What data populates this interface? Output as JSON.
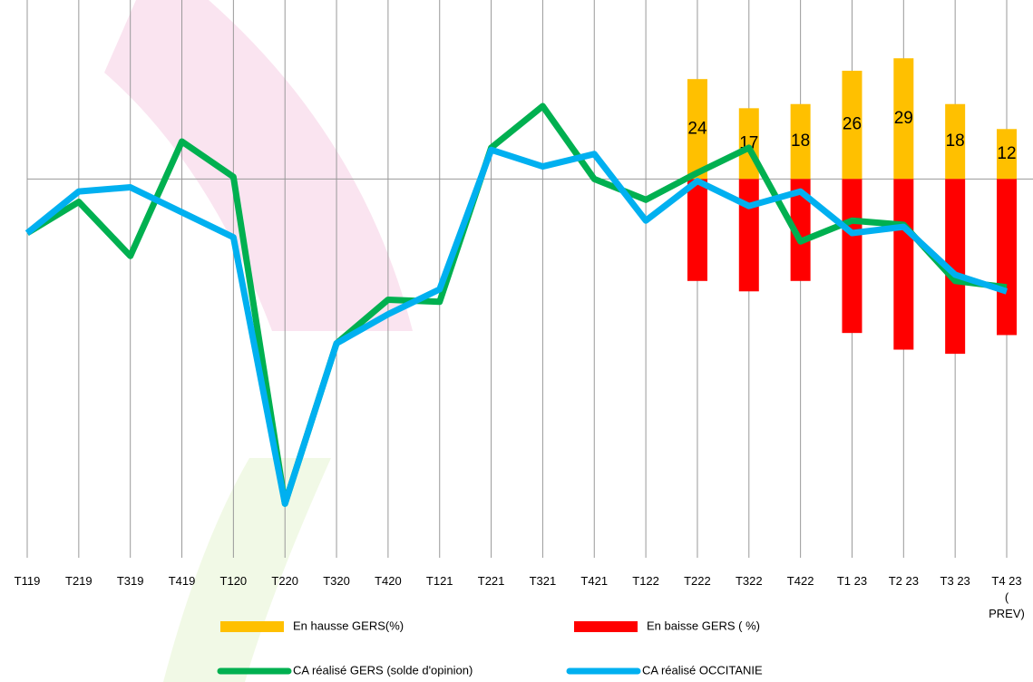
{
  "chart_data": {
    "type": "bar-line",
    "categories": [
      "T119",
      "T219",
      "T319",
      "T419",
      "T120",
      "T220",
      "T320",
      "T420",
      "T121",
      "T221",
      "T321",
      "T421",
      "T122",
      "T222",
      "T322",
      "T422",
      "T1 23",
      "T2 23",
      "T3 23",
      "T4 23 ( PREV)"
    ],
    "ylim": [
      -91,
      43
    ],
    "series": [
      {
        "name": "En hausse GERS(%)",
        "kind": "bar",
        "color": "#FFC000",
        "values": [
          null,
          null,
          null,
          null,
          null,
          null,
          null,
          null,
          null,
          null,
          null,
          null,
          null,
          24,
          17,
          18,
          26,
          29,
          18,
          12
        ]
      },
      {
        "name": "En baisse GERS ( %)",
        "kind": "bar",
        "color": "#FF0000",
        "values": [
          null,
          null,
          null,
          null,
          null,
          null,
          null,
          null,
          null,
          null,
          null,
          null,
          null,
          -24.5,
          -27,
          -24.5,
          -37,
          -41,
          -42,
          -37.5
        ]
      },
      {
        "name": "CA réalisé GERS (solde d'opinion)",
        "kind": "line",
        "color": "#00B050",
        "values": [
          -13,
          -5.5,
          -18.5,
          9,
          0.5,
          -78,
          -39.5,
          -29,
          -29.5,
          7.5,
          17.5,
          0,
          -5,
          1.5,
          7.5,
          -15,
          -10,
          -11,
          -24.5,
          -26
        ]
      },
      {
        "name": "CA réalisé OCCITANIE",
        "kind": "line",
        "color": "#00B0F0",
        "values": [
          -13,
          -3,
          -2,
          -8,
          -14,
          -78,
          -39.5,
          -32.5,
          -26.5,
          7,
          3,
          6,
          -10,
          -0.5,
          -6.5,
          -3,
          -13,
          -11.5,
          -23,
          -27
        ]
      }
    ]
  }
}
